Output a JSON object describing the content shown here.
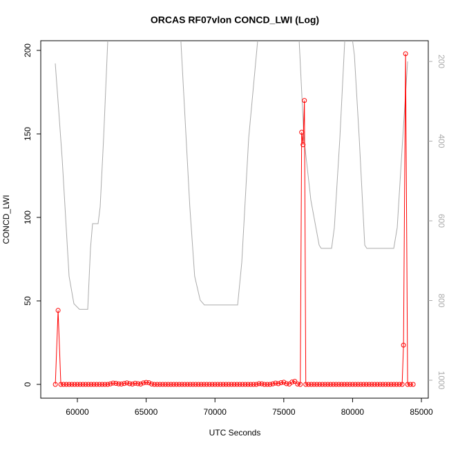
{
  "chart_data": {
    "type": "line",
    "title": "ORCAS RF07vlon CONCD_LWI (Log)",
    "xlabel": "UTC Seconds",
    "ylabel": "CONCD_LWI",
    "xlim": [
      57340,
      85500
    ],
    "xticks": [
      60000,
      65000,
      70000,
      75000,
      80000,
      85000
    ],
    "ylim": [
      -8.26,
      205.8
    ],
    "yticks": [
      0,
      50,
      100,
      150,
      200
    ],
    "y2lim": [
      1045,
      148
    ],
    "y2ticks": [
      200,
      400,
      600,
      800,
      1000
    ],
    "series": [
      {
        "color": "#aaaaaa",
        "axis": "y2",
        "x": [
          58394,
          58645,
          58896,
          59398,
          59749,
          60151,
          60753,
          60954,
          61104,
          61506,
          61657,
          61908,
          62209,
          62300,
          null,
          67450,
          67522,
          68173,
          68524,
          68926,
          69227,
          71647,
          71948,
          72450,
          73102,
          73150,
          null,
          76100,
          76466,
          76968,
          77570,
          77720,
          78474,
          78675,
          79076,
          79378,
          79450,
          null,
          79950,
          80131,
          80482,
          80884,
          81034,
          82992,
          83243,
          83645,
          84000
        ],
        "values": [
          205,
          323,
          444,
          739,
          808,
          822,
          822,
          669,
          607,
          607,
          565,
          392,
          148,
          135,
          null,
          135,
          148,
          565,
          739,
          799,
          811,
          811,
          704,
          392,
          148,
          135,
          null,
          135,
          392,
          548,
          661,
          669,
          669,
          617,
          392,
          184,
          135,
          null,
          135,
          184,
          392,
          661,
          669,
          669,
          617,
          392,
          200
        ]
      },
      {
        "color": "#ff0000",
        "marker": "circle",
        "x": [
          58400,
          58600,
          58800,
          59000,
          59200,
          59400,
          59600,
          59800,
          60000,
          60200,
          60400,
          60600,
          60800,
          61000,
          61200,
          61400,
          61600,
          61800,
          62000,
          62200,
          62400,
          62600,
          62800,
          63000,
          63200,
          63400,
          63600,
          63800,
          64000,
          64200,
          64400,
          64600,
          64800,
          65000,
          65200,
          65400,
          65600,
          65800,
          66000,
          66200,
          66400,
          66600,
          66800,
          67000,
          67200,
          67400,
          67600,
          67800,
          68000,
          68200,
          68400,
          68600,
          68800,
          69000,
          69200,
          69400,
          69600,
          69800,
          70000,
          70200,
          70400,
          70600,
          70800,
          71000,
          71200,
          71400,
          71600,
          71800,
          72000,
          72200,
          72400,
          72600,
          72800,
          73000,
          73200,
          73400,
          73600,
          73800,
          74000,
          74200,
          74400,
          74600,
          74800,
          75000,
          75200,
          75400,
          75600,
          75800,
          76000,
          76200,
          76300,
          76400,
          76500,
          76600,
          76800,
          77000,
          77200,
          77400,
          77600,
          77800,
          78000,
          78200,
          78400,
          78600,
          78800,
          79000,
          79200,
          79400,
          79600,
          79800,
          80000,
          80200,
          80400,
          80600,
          80800,
          81000,
          81200,
          81400,
          81600,
          81800,
          82000,
          82200,
          82400,
          82600,
          82800,
          83000,
          83200,
          83400,
          83600,
          83700,
          83850,
          84000,
          84200,
          84400
        ],
        "values": [
          0,
          44.3,
          0,
          0,
          0,
          0,
          0,
          0,
          0,
          0,
          0,
          0,
          0,
          0,
          0,
          0,
          0,
          0,
          0,
          0,
          0.3,
          0.8,
          0.6,
          0.3,
          0.2,
          0.5,
          0.9,
          0.4,
          0.2,
          0.7,
          0.4,
          0.2,
          0.9,
          1.2,
          1.0,
          0.2,
          0,
          0,
          0,
          0,
          0,
          0,
          0,
          0,
          0,
          0,
          0,
          0,
          0,
          0,
          0,
          0,
          0,
          0,
          0,
          0,
          0,
          0,
          0,
          0,
          0,
          0,
          0,
          0,
          0,
          0,
          0,
          0,
          0,
          0,
          0,
          0,
          0,
          0,
          0.4,
          0.3,
          0,
          0,
          0,
          0.3,
          0.8,
          0.4,
          1.0,
          1.3,
          0.4,
          0.2,
          1.4,
          1.8,
          0.2,
          0,
          151,
          143.5,
          170,
          0,
          0,
          0,
          0,
          0,
          0,
          0,
          0,
          0,
          0,
          0,
          0,
          0,
          0,
          0,
          0,
          0,
          0,
          0,
          0,
          0,
          0,
          0,
          0,
          0,
          0,
          0,
          0,
          0,
          0,
          0,
          0,
          0,
          0,
          0,
          0,
          23.5,
          198,
          0,
          0,
          0
        ]
      }
    ]
  }
}
